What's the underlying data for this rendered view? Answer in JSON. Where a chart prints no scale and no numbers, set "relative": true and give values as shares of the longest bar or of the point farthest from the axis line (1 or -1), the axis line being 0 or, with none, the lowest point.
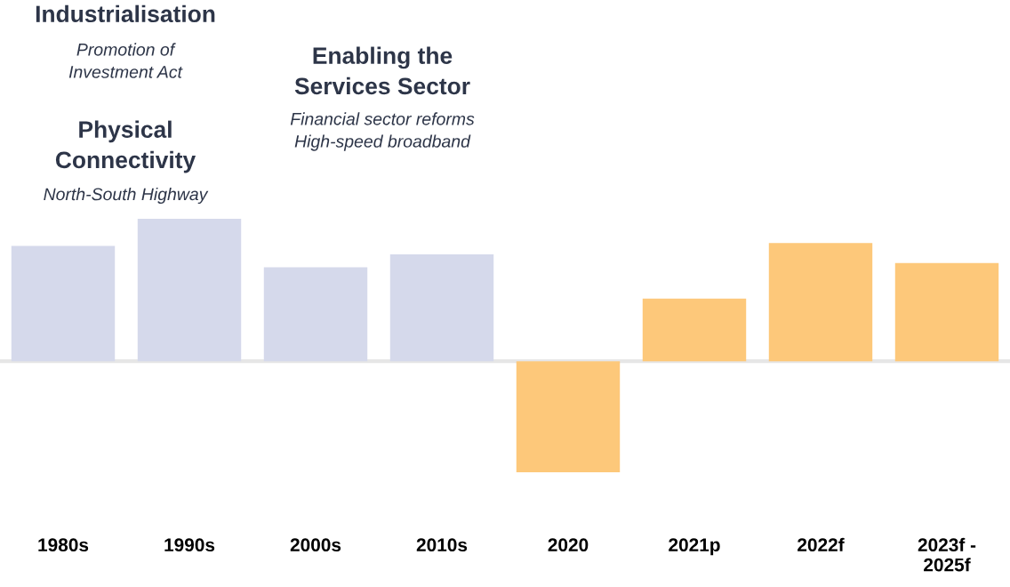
{
  "chart_data": {
    "type": "bar",
    "relative": true,
    "categories": [
      "1980s",
      "1990s",
      "2000s",
      "2010s",
      "2020",
      "2021p",
      "2022f",
      "2023f -\n2025f"
    ],
    "values": [
      0.81,
      1,
      0.66,
      0.75,
      -0.78,
      0.44,
      0.83,
      0.69
    ],
    "colors": [
      "#d5d9eb",
      "#d5d9eb",
      "#d5d9eb",
      "#d5d9eb",
      "#fdc87a",
      "#fdc87a",
      "#fdc87a",
      "#fdc87a"
    ],
    "annotations": [
      "Industrialisation",
      "Promotion of\nInvestment Act",
      "Physical\nConnectivity",
      "North-South Highway",
      "Enabling the\nServices Sector",
      "Financial sector reforms\nHigh-speed broadband"
    ],
    "grid": false,
    "legend": false
  }
}
